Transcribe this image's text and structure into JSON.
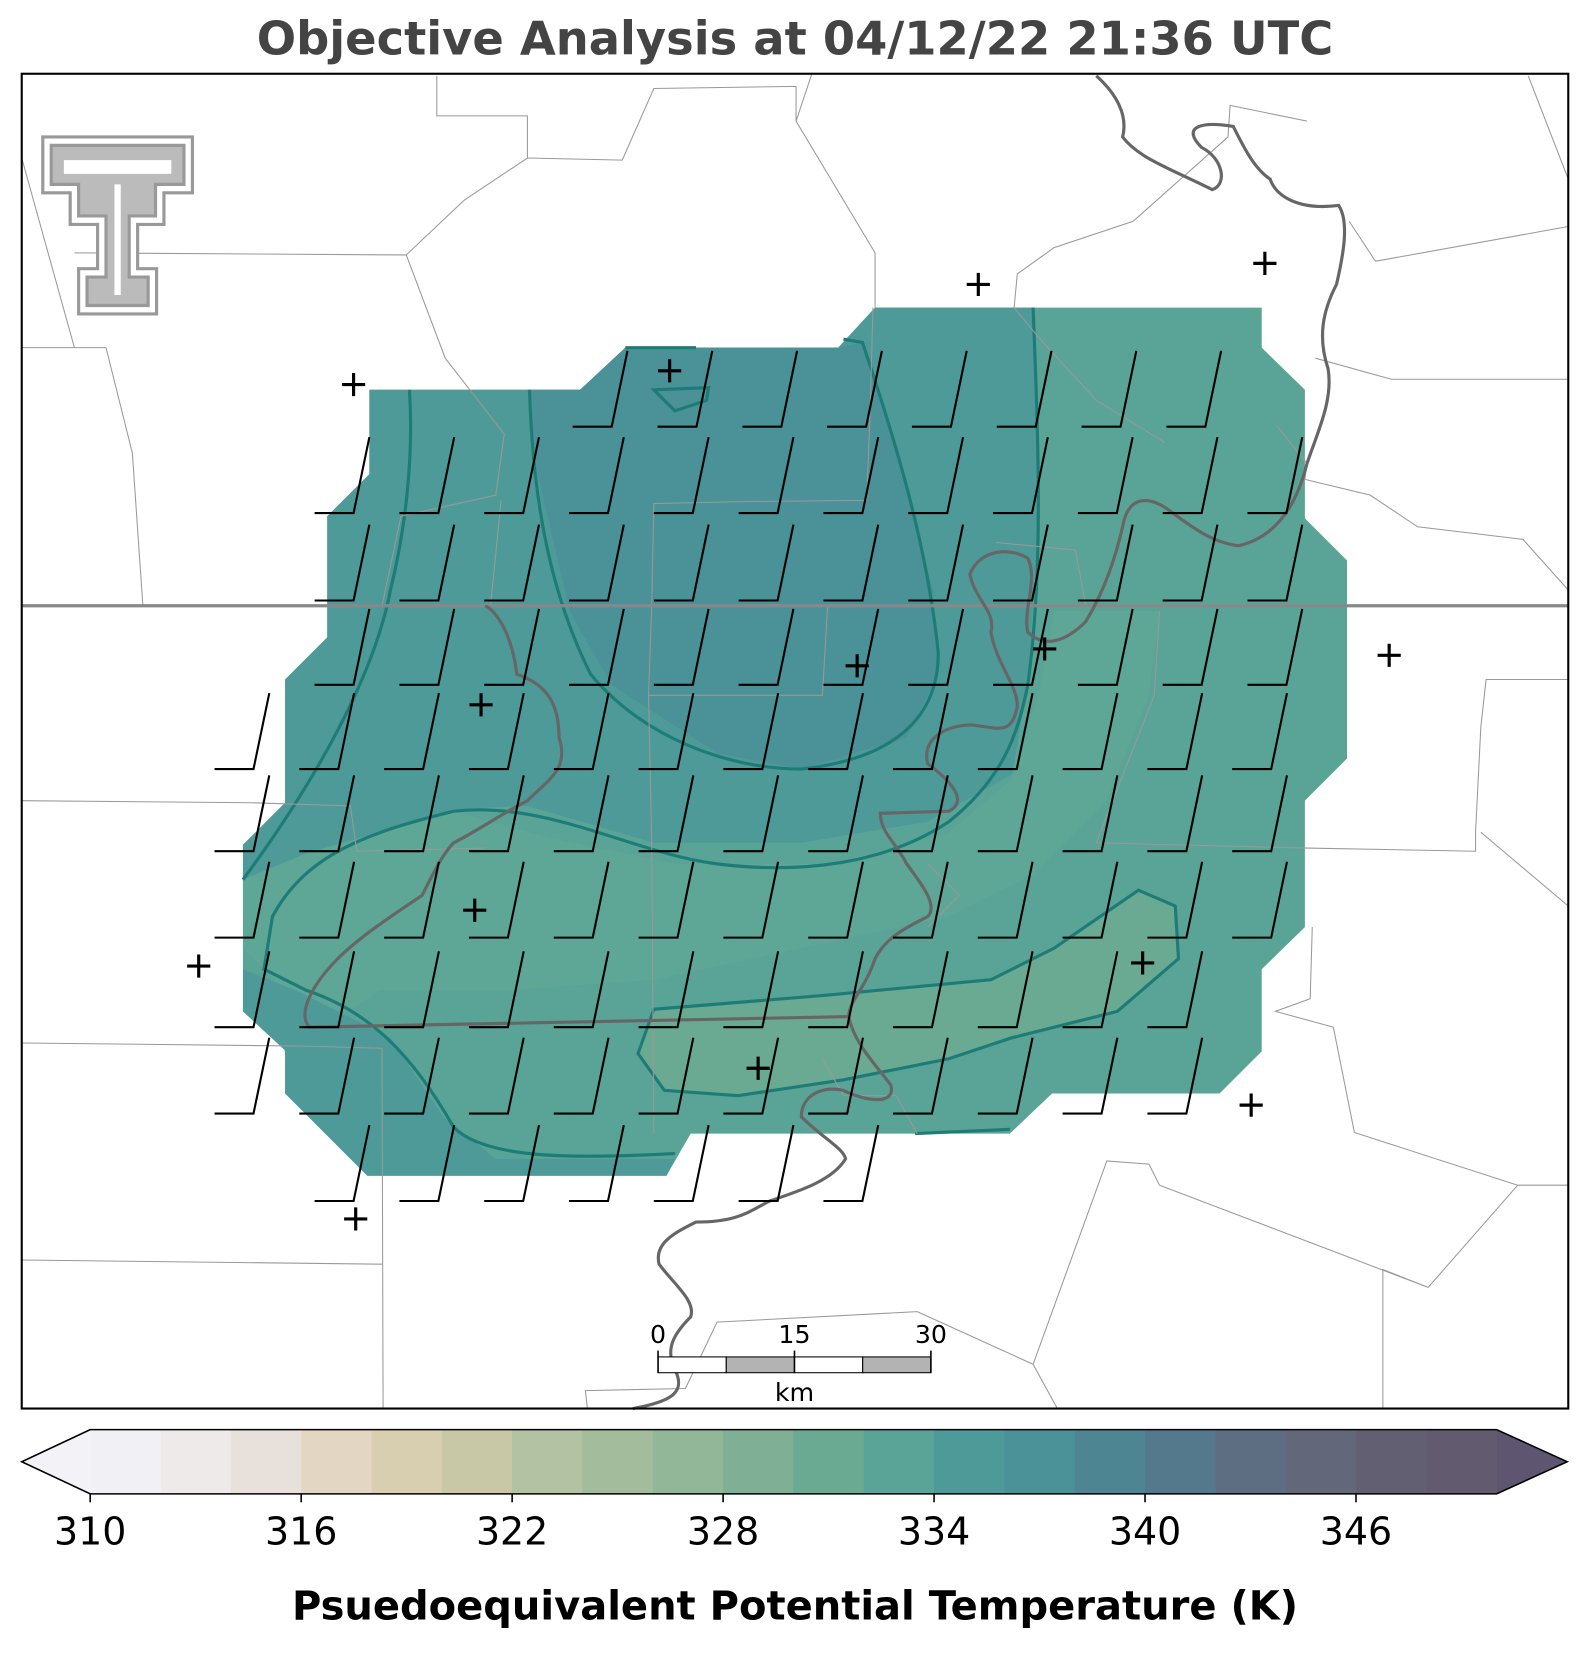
{
  "title": "Objective Analysis at 04/12/22 21:36 UTC",
  "colorbar": {
    "label": "Psuedoequivalent Potential Temperature (K)",
    "lim": [
      310,
      350
    ],
    "ticks": [
      310,
      316,
      322,
      328,
      334,
      340,
      346
    ],
    "colors": [
      "#f1f0f4",
      "#eeeae9",
      "#e8e0da",
      "#e3d6c3",
      "#d8cfb0",
      "#c8c8a6",
      "#b2c2a2",
      "#a2bc9c",
      "#92b798",
      "#7fb095",
      "#6aaa93",
      "#5aa497",
      "#4e9a98",
      "#4a9198",
      "#4d8592",
      "#55798c",
      "#5d6d82",
      "#626879",
      "#635f73",
      "#625a6e"
    ],
    "under_color": "#f3f2f7",
    "over_color": "#5e5570"
  },
  "scale_bar": {
    "lim": [
      0,
      30
    ],
    "ticks": [
      0,
      15,
      30
    ],
    "unit": "km"
  }
}
